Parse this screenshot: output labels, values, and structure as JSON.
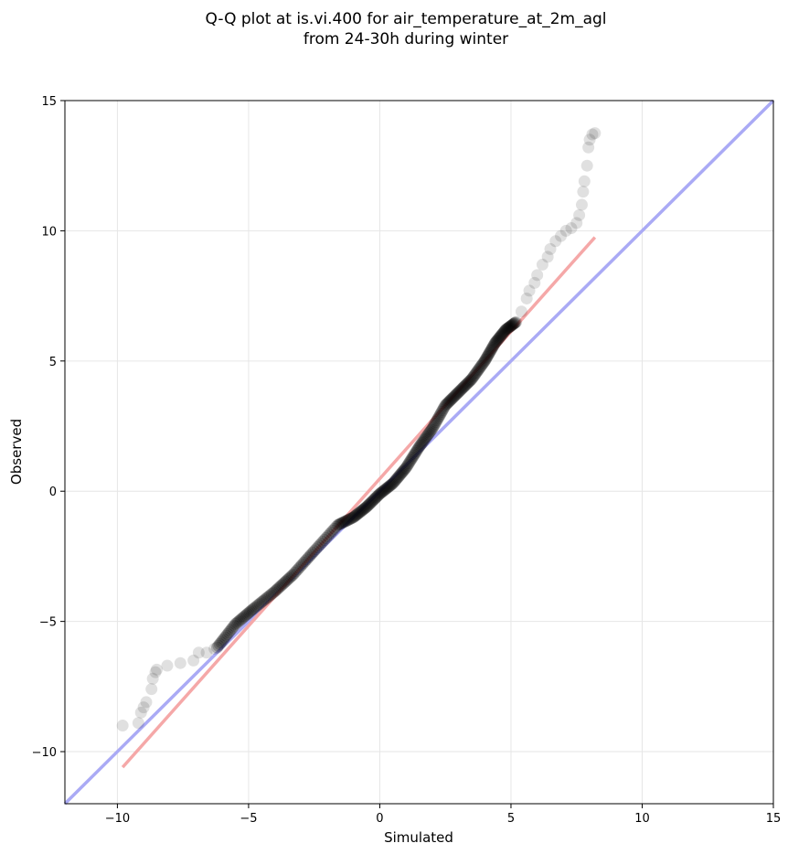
{
  "chart_data": {
    "type": "scatter",
    "title_line1": "Q-Q plot at is.vi.400 for air_temperature_at_2m_agl",
    "title_line2": "from 24-30h during winter",
    "xlabel": "Simulated",
    "ylabel": "Observed",
    "xlim": [
      -12,
      15
    ],
    "ylim": [
      -12,
      15
    ],
    "xticks": [
      -10,
      -5,
      0,
      5,
      10,
      15
    ],
    "yticks": [
      -10,
      -5,
      0,
      5,
      10,
      15
    ],
    "xtick_labels": [
      "−10",
      "−5",
      "0",
      "5",
      "10",
      "15"
    ],
    "ytick_labels": [
      "−10",
      "−5",
      "0",
      "5",
      "10",
      "15"
    ],
    "grid": true,
    "reference_line": {
      "color": "#aaaaf5",
      "x": [
        -12,
        15
      ],
      "y": [
        -12,
        15
      ]
    },
    "fit_line": {
      "color": "#f5a8a8",
      "x": [
        -9.8,
        8.2
      ],
      "y": [
        -10.6,
        9.75
      ]
    },
    "tail_points": [
      [
        -9.8,
        -9.0
      ],
      [
        -9.2,
        -8.9
      ],
      [
        -9.1,
        -8.5
      ],
      [
        -9.0,
        -8.3
      ],
      [
        -8.9,
        -8.1
      ],
      [
        -8.7,
        -7.6
      ],
      [
        -8.65,
        -7.2
      ],
      [
        -8.55,
        -6.95
      ],
      [
        -8.5,
        -6.85
      ],
      [
        -8.1,
        -6.7
      ],
      [
        -7.6,
        -6.6
      ],
      [
        -7.1,
        -6.5
      ],
      [
        -6.9,
        -6.2
      ],
      [
        -6.6,
        -6.2
      ],
      [
        -6.3,
        -6.05
      ],
      [
        5.2,
        6.5
      ],
      [
        5.4,
        6.9
      ],
      [
        5.6,
        7.4
      ],
      [
        5.7,
        7.7
      ],
      [
        5.9,
        8.0
      ],
      [
        6.0,
        8.3
      ],
      [
        6.2,
        8.7
      ],
      [
        6.4,
        9.0
      ],
      [
        6.5,
        9.3
      ],
      [
        6.7,
        9.6
      ],
      [
        6.9,
        9.8
      ],
      [
        7.1,
        10.0
      ],
      [
        7.3,
        10.1
      ],
      [
        7.5,
        10.3
      ],
      [
        7.6,
        10.6
      ],
      [
        7.7,
        11.0
      ],
      [
        7.75,
        11.5
      ],
      [
        7.8,
        11.9
      ],
      [
        7.9,
        12.5
      ],
      [
        7.95,
        13.2
      ],
      [
        8.0,
        13.5
      ],
      [
        8.1,
        13.7
      ],
      [
        8.2,
        13.75
      ]
    ],
    "core_curve": [
      [
        -6.2,
        -6.0
      ],
      [
        -5.5,
        -5.1
      ],
      [
        -4.8,
        -4.5
      ],
      [
        -4.0,
        -3.85
      ],
      [
        -3.3,
        -3.2
      ],
      [
        -2.5,
        -2.3
      ],
      [
        -1.6,
        -1.3
      ],
      [
        -1.0,
        -1.0
      ],
      [
        -0.5,
        -0.6
      ],
      [
        0.0,
        -0.1
      ],
      [
        0.5,
        0.3
      ],
      [
        1.0,
        0.9
      ],
      [
        1.5,
        1.7
      ],
      [
        2.0,
        2.4
      ],
      [
        2.5,
        3.3
      ],
      [
        3.0,
        3.8
      ],
      [
        3.5,
        4.3
      ],
      [
        4.0,
        5.0
      ],
      [
        4.4,
        5.7
      ],
      [
        4.8,
        6.2
      ],
      [
        5.2,
        6.5
      ]
    ],
    "point_color": "#000000"
  }
}
